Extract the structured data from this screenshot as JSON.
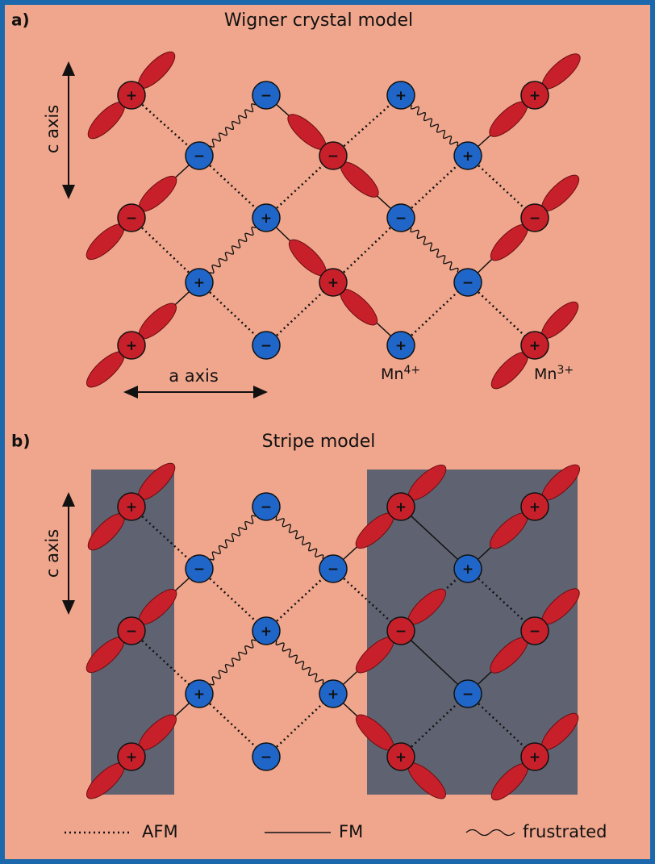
{
  "panels": [
    {
      "label": "a)",
      "title": "Wigner crystal model",
      "c_axis": "c axis",
      "a_axis": "a axis",
      "nodes": [
        "+",
        "−",
        "+",
        "+",
        "−",
        "−",
        "+",
        "−",
        "+",
        "−",
        "−",
        "+",
        "+",
        "−",
        "+",
        "−",
        "+",
        "+"
      ],
      "ion_labels": [
        {
          "text": "Mn",
          "sup": "4+"
        },
        {
          "text": "Mn",
          "sup": "3+"
        }
      ]
    },
    {
      "label": "b)",
      "title": "Stripe model",
      "c_axis": "c axis",
      "nodes": [
        "+",
        "−",
        "+",
        "+",
        "−",
        "−",
        "+",
        "−",
        "+",
        "−",
        "−",
        "+",
        "+",
        "−",
        "+",
        "−",
        "+",
        "+"
      ]
    }
  ],
  "legend": [
    "AFM",
    "FM",
    "frustrated"
  ]
}
